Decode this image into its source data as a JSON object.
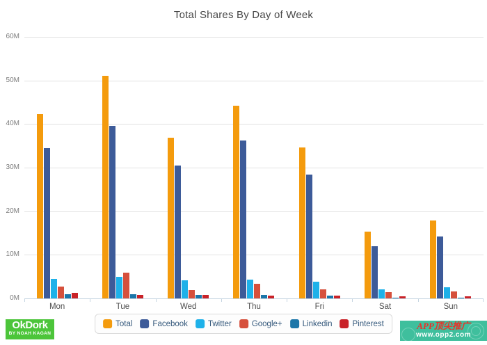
{
  "title": "Total Shares By Day of Week",
  "branding": {
    "logo_title": "OkDork",
    "logo_subtitle": "BY NOAH KAGAN",
    "watermark_line1": "APP顶尖推广",
    "watermark_line2": "www.opp2.com"
  },
  "colors": {
    "total": "#f49b0d",
    "facebook": "#3d5b99",
    "twitter": "#1eb1e9",
    "google_plus": "#d6503c",
    "linkedin": "#1c76a9",
    "pinterest": "#c92228",
    "gridline": "#e2e2e2",
    "axis_line": "#c6d5e1",
    "logo_green": "#4cc53a",
    "watermark_teal": "#3fbf9d",
    "watermark_red": "#e8332a"
  },
  "chart_data": {
    "type": "bar",
    "title": "Total Shares By Day of Week",
    "categories": [
      "Mon",
      "Tue",
      "Wed",
      "Thu",
      "Fri",
      "Sat",
      "Sun"
    ],
    "unit": "millions",
    "ylim": [
      0,
      60
    ],
    "ytick_labels": [
      "60M",
      "50M",
      "40M",
      "30M",
      "20M",
      "10M",
      "0M"
    ],
    "grid": true,
    "legend_position": "bottom",
    "series": [
      {
        "name": "Total",
        "color": "#f49b0d",
        "values": [
          42.3,
          51.0,
          36.8,
          44.2,
          34.6,
          15.3,
          17.8
        ]
      },
      {
        "name": "Facebook",
        "color": "#3d5b99",
        "values": [
          34.5,
          39.5,
          30.5,
          36.2,
          28.4,
          12.0,
          14.2
        ]
      },
      {
        "name": "Twitter",
        "color": "#1eb1e9",
        "values": [
          4.5,
          5.0,
          4.1,
          4.3,
          3.8,
          2.1,
          2.6
        ]
      },
      {
        "name": "Google+",
        "color": "#d6503c",
        "values": [
          2.7,
          5.9,
          1.9,
          3.3,
          2.1,
          1.4,
          1.6
        ]
      },
      {
        "name": "Linkedin",
        "color": "#1c76a9",
        "values": [
          1.0,
          0.9,
          0.8,
          0.8,
          0.6,
          0.1,
          0.1
        ]
      },
      {
        "name": "Pinterest",
        "color": "#c92228",
        "values": [
          1.3,
          0.8,
          0.8,
          0.6,
          0.7,
          0.5,
          0.5
        ]
      }
    ]
  }
}
